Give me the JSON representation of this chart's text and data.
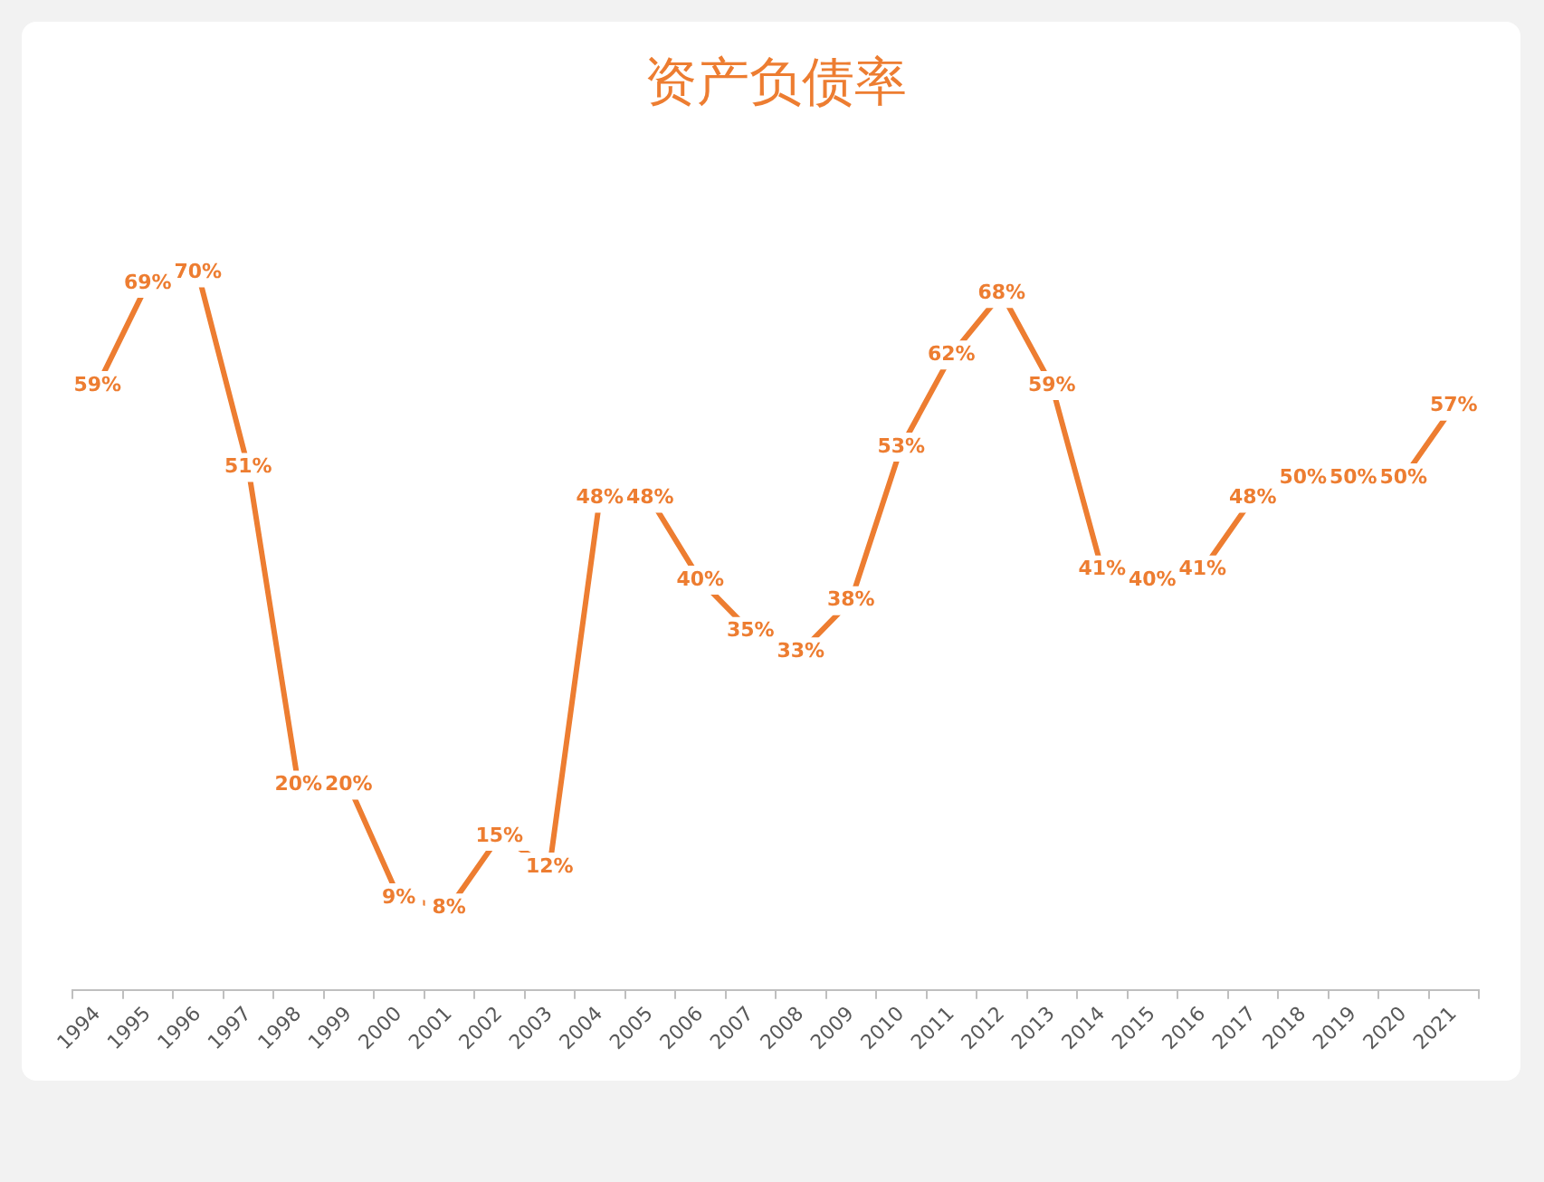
{
  "chart_data": {
    "type": "line",
    "title": "资产负债率",
    "categories": [
      "1994",
      "1995",
      "1996",
      "1997",
      "1998",
      "1999",
      "2000",
      "2001",
      "2002",
      "2003",
      "2004",
      "2005",
      "2006",
      "2007",
      "2008",
      "2009",
      "2010",
      "2011",
      "2012",
      "2013",
      "2014",
      "2015",
      "2016",
      "2017",
      "2018",
      "2019",
      "2020",
      "2021"
    ],
    "values": [
      59,
      69,
      70,
      51,
      20,
      20,
      9,
      8,
      15,
      12,
      48,
      48,
      40,
      35,
      33,
      38,
      53,
      62,
      68,
      59,
      41,
      40,
      41,
      48,
      50,
      50,
      50,
      57
    ],
    "value_labels": [
      "59%",
      "69%",
      "70%",
      "51%",
      "20%",
      "20%",
      "9%",
      "8%",
      "15%",
      "12%",
      "48%",
      "48%",
      "40%",
      "35%",
      "33%",
      "38%",
      "53%",
      "62%",
      "68%",
      "59%",
      "41%",
      "40%",
      "41%",
      "48%",
      "50%",
      "50%",
      "50%",
      "57%"
    ],
    "color": "#ed7d31",
    "marker": "none",
    "line_style": "solid"
  }
}
